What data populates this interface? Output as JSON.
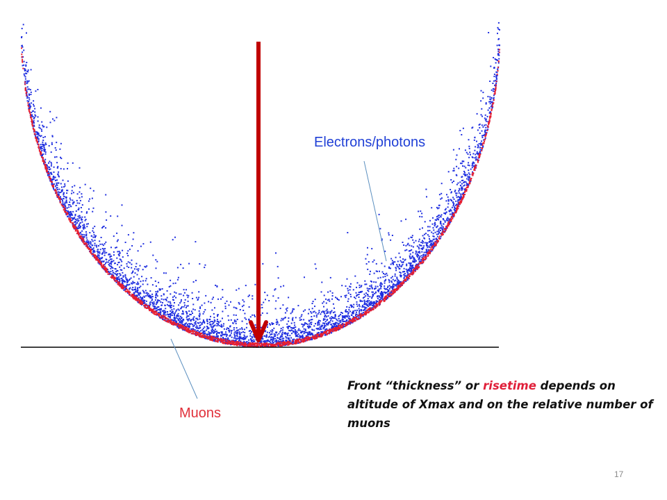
{
  "labels": {
    "electrons": "Electrons/photons",
    "muons": "Muons"
  },
  "caption": {
    "part1": "Front “thickness” or ",
    "highlight": "risetime",
    "part2": " depends on altitude of Xmax and on the relative number of muons"
  },
  "page_number": "17",
  "colors": {
    "electrons": "#1f2fe0",
    "muons": "#e81f2f",
    "arrow": "#c00000",
    "pointer": "#5b8fbf",
    "ground": "#000000",
    "caption_highlight": "#e0203a"
  }
}
